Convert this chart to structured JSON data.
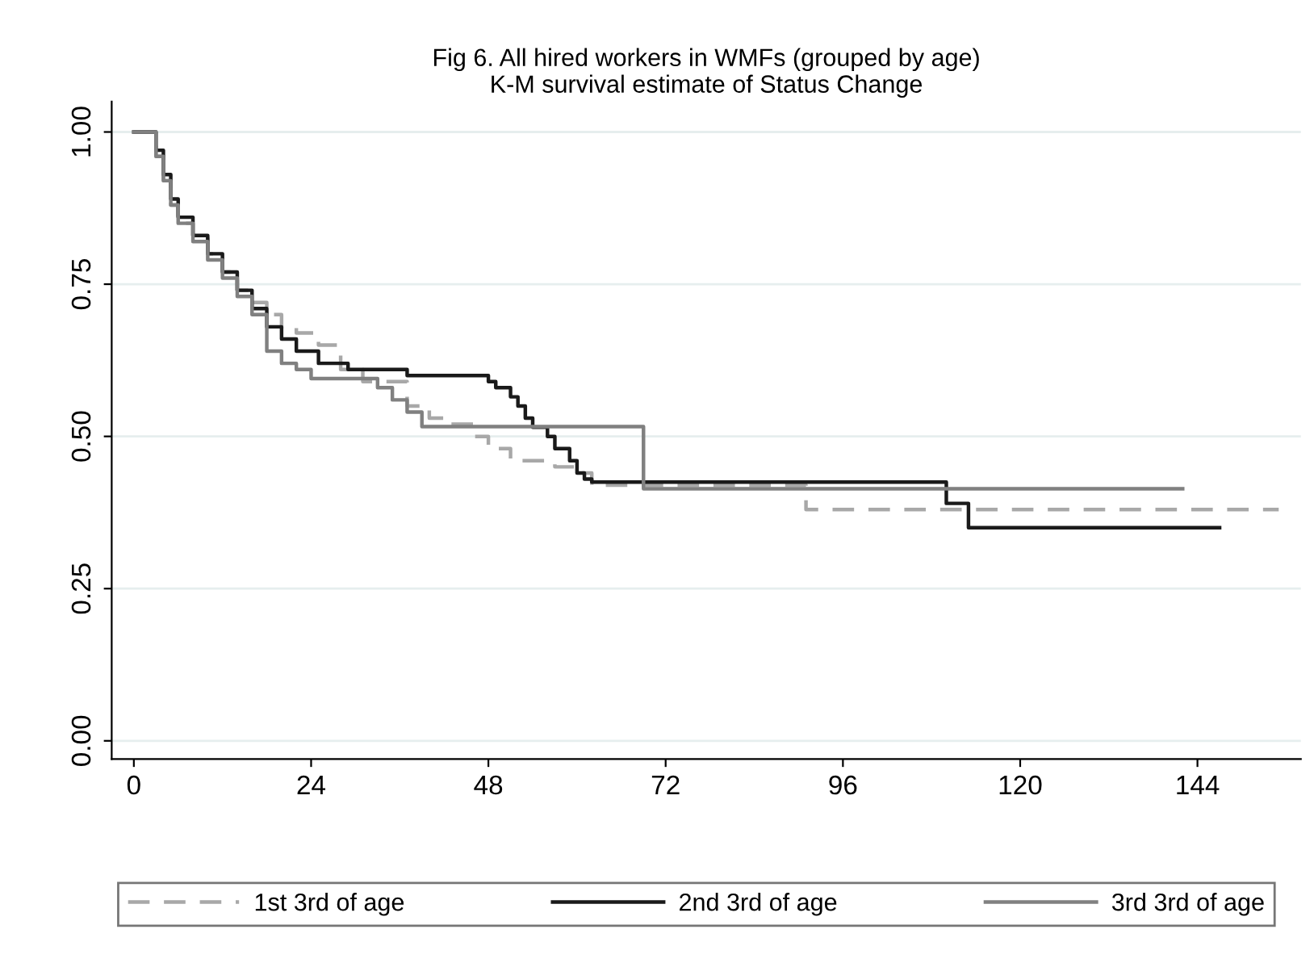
{
  "chart_data": {
    "type": "step",
    "title": "Fig 6. All hired workers in WMFs (grouped by age)",
    "subtitle": "K-M survival estimate of Status Change",
    "xlim": [
      -3,
      158
    ],
    "ylim": [
      -0.03,
      1.05
    ],
    "xticks": [
      0,
      24,
      48,
      72,
      96,
      120,
      144
    ],
    "yticks": [
      {
        "value": 0,
        "label": "0.00"
      },
      {
        "value": 0.25,
        "label": "0.25"
      },
      {
        "value": 0.5,
        "label": "0.50"
      },
      {
        "value": 0.75,
        "label": "0.75"
      },
      {
        "value": 1,
        "label": "1.00"
      }
    ],
    "grid": "y",
    "legend": "bottom",
    "series": [
      {
        "name": "1st 3rd of age",
        "color": "#a8a8a8",
        "line_style": "dashed",
        "x": [
          0,
          3,
          4,
          5,
          6,
          8,
          10,
          12,
          14,
          16,
          18,
          20,
          22,
          25,
          28,
          31,
          37,
          40,
          42,
          46,
          48,
          51,
          57,
          60,
          62,
          91,
          155
        ],
        "values": [
          1,
          0.96,
          0.92,
          0.88,
          0.85,
          0.83,
          0.8,
          0.77,
          0.74,
          0.72,
          0.7,
          0.68,
          0.67,
          0.65,
          0.61,
          0.59,
          0.55,
          0.53,
          0.52,
          0.5,
          0.48,
          0.46,
          0.45,
          0.44,
          0.42,
          0.38,
          0.38
        ]
      },
      {
        "name": "2nd 3rd of age",
        "color": "#1a1a1a",
        "line_style": "solid",
        "x": [
          0,
          3,
          4,
          5,
          6,
          8,
          10,
          12,
          14,
          16,
          18,
          20,
          22,
          25,
          29,
          37,
          48,
          49,
          51,
          52,
          53,
          54,
          56,
          57,
          59,
          60,
          61,
          62,
          110,
          113,
          147
        ],
        "values": [
          1,
          0.97,
          0.93,
          0.89,
          0.86,
          0.83,
          0.8,
          0.77,
          0.74,
          0.71,
          0.68,
          0.66,
          0.64,
          0.62,
          0.61,
          0.6,
          0.59,
          0.58,
          0.565,
          0.55,
          0.53,
          0.515,
          0.5,
          0.48,
          0.46,
          0.44,
          0.43,
          0.425,
          0.39,
          0.35,
          0.35
        ]
      },
      {
        "name": "3rd 3rd of age",
        "color": "#808080",
        "line_style": "solid",
        "x": [
          0,
          3,
          4,
          5,
          6,
          8,
          10,
          12,
          14,
          16,
          18,
          20,
          22,
          24,
          33,
          35,
          37,
          39,
          69,
          142
        ],
        "values": [
          1,
          0.96,
          0.92,
          0.88,
          0.85,
          0.82,
          0.79,
          0.76,
          0.73,
          0.7,
          0.64,
          0.62,
          0.61,
          0.595,
          0.58,
          0.56,
          0.54,
          0.516,
          0.414,
          0.414
        ]
      }
    ]
  }
}
